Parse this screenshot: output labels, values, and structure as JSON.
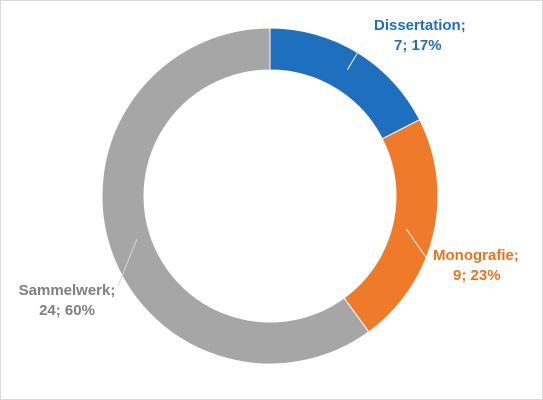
{
  "chart_data": {
    "type": "pie",
    "variant": "donut",
    "title": "",
    "legend": "none",
    "slices": [
      {
        "category": "Dissertation",
        "value": 7,
        "percent": "17%",
        "color": "#1f6fbf",
        "label_color": "#1f6fbf",
        "label_line1": "Dissertation;",
        "label_line2": "7; 17%"
      },
      {
        "category": "Monografie",
        "value": 9,
        "percent": "23%",
        "color": "#ef7b2a",
        "label_color": "#e8731f",
        "label_line1": "Monografie;",
        "label_line2": "9; 23%"
      },
      {
        "category": "Sammelwerk",
        "value": 24,
        "percent": "60%",
        "color": "#a6a6a6",
        "label_color": "#7f7f7f",
        "label_line1": "Sammelwerk;",
        "label_line2": "24; 60%"
      }
    ]
  }
}
